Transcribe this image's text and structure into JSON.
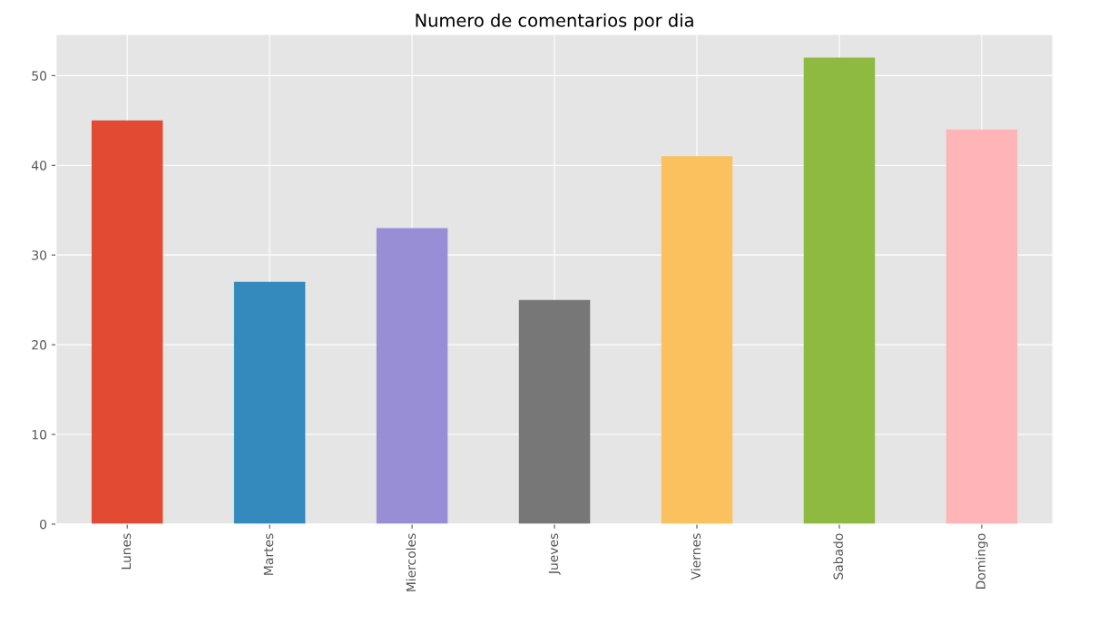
{
  "chart_data": {
    "type": "bar",
    "title": "Numero de comentarios por dia",
    "categories": [
      "Lunes",
      "Martes",
      "Miercoles",
      "Jueves",
      "Viernes",
      "Sabado",
      "Domingo"
    ],
    "values": [
      45,
      27,
      33,
      25,
      41,
      52,
      44
    ],
    "colors": [
      "#e24a33",
      "#348abd",
      "#988ed5",
      "#777777",
      "#fbc15e",
      "#8eba42",
      "#ffb5b8"
    ],
    "ylim": [
      0,
      54.6
    ],
    "yticks": [
      0,
      10,
      20,
      30,
      40,
      50
    ],
    "grid": true
  }
}
